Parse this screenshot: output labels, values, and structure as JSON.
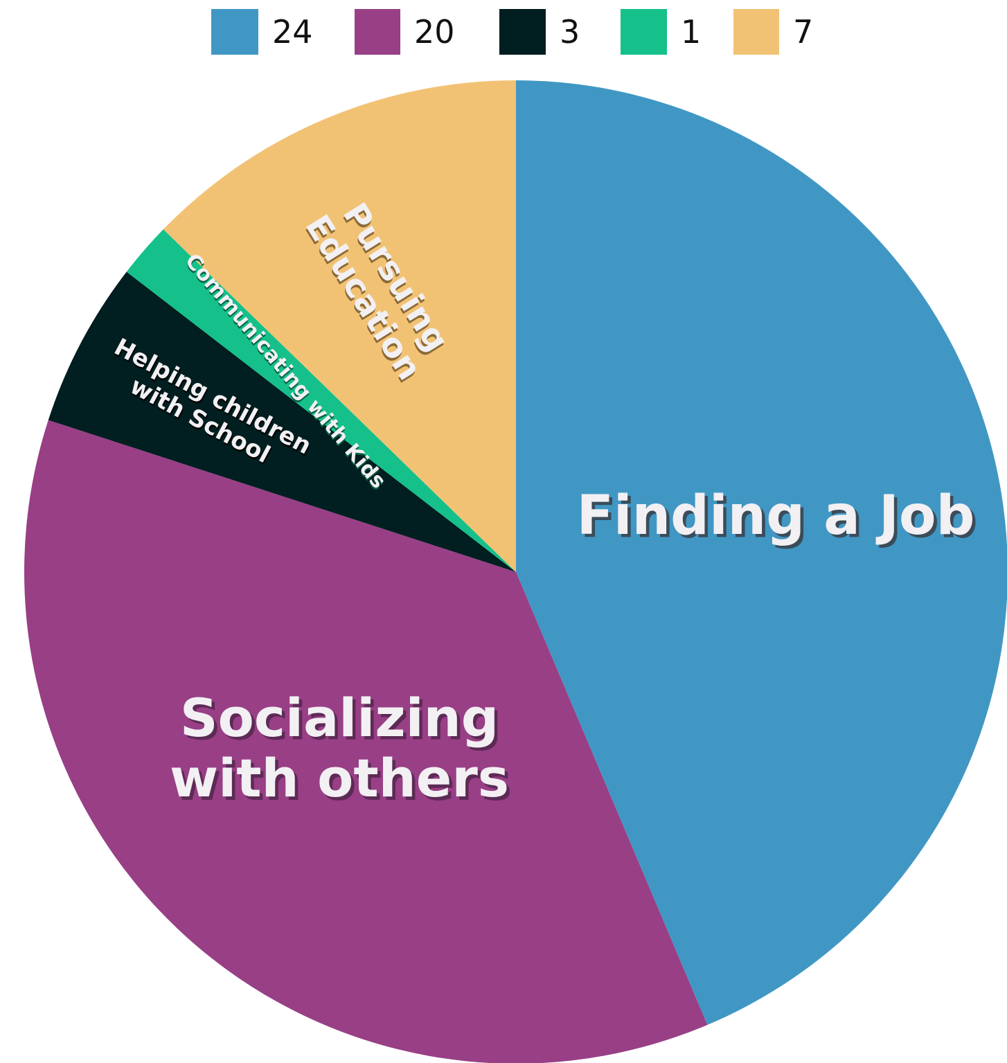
{
  "chart_data": {
    "type": "pie",
    "slices": [
      {
        "label": "Finding a Job",
        "legend": "24",
        "value": 24,
        "color": "#4197c4",
        "label_shadow": "#3a4c5a"
      },
      {
        "label": "Socializing with others",
        "lines": [
          "Socializing",
          "with others"
        ],
        "legend": "20",
        "value": 20,
        "color": "#983f86",
        "label_shadow": "#5d2a55"
      },
      {
        "label": "Helping children with School",
        "lines": [
          "Helping children",
          "with School"
        ],
        "legend": "3",
        "value": 3,
        "color": "#011e20",
        "label_shadow": "#000000"
      },
      {
        "label": "Communicating with Kids",
        "legend": "1",
        "value": 1,
        "color": "#15c08b",
        "label_shadow": "#0a5e44"
      },
      {
        "label": "Pursuing Education",
        "lines": [
          "Pursuing",
          "Education"
        ],
        "legend": "7",
        "value": 7,
        "color": "#f2c274",
        "label_shadow": "#8c6a37"
      }
    ],
    "start_angle_deg": 0,
    "direction": "clockwise",
    "legend_position": "top"
  }
}
